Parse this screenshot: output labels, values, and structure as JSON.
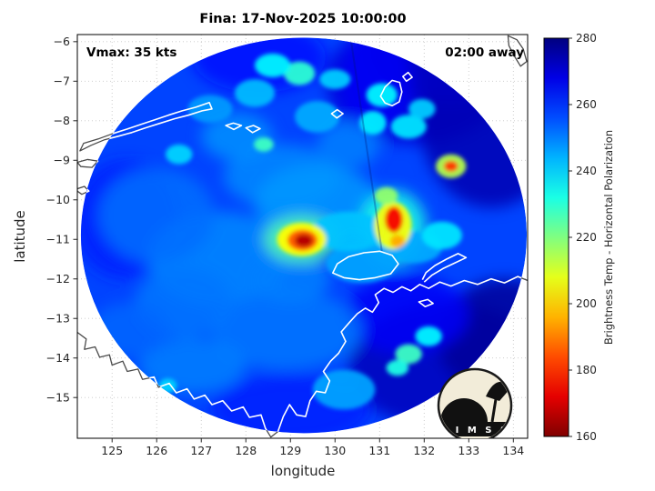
{
  "title": "Fina: 17-Nov-2025 10:00:00",
  "annotations": {
    "vmax": "Vmax: 35 kts",
    "eta": "02:00 away"
  },
  "axes": {
    "xlabel": "longitude",
    "ylabel": "latitude",
    "xticks": [
      125,
      126,
      127,
      128,
      129,
      130,
      131,
      132,
      133,
      134
    ],
    "yticks": [
      -6,
      -7,
      -8,
      -9,
      -10,
      -11,
      -12,
      -13,
      -14,
      -15
    ],
    "xlim": [
      124.22,
      134.32
    ],
    "ylim": [
      -16.03,
      -5.82
    ],
    "grid": "dotted"
  },
  "colorbar": {
    "label": "Brightness Temp - Horizontal Polarization",
    "ticks": [
      280,
      260,
      240,
      220,
      200,
      180,
      160
    ],
    "min": 160,
    "max": 280,
    "colormap": "jet (reversed: 280 K dark blue at top, 160 K dark red at bottom)"
  },
  "logo": {
    "text": "C I M S S"
  },
  "chart_data": {
    "type": "heatmap",
    "title": "Fina: 17-Nov-2025 10:00:00",
    "xlabel": "longitude",
    "ylabel": "latitude",
    "value_label": "Brightness Temp - Horizontal Polarization (K)",
    "value_range": [
      160,
      280
    ],
    "xlim": [
      124.22,
      134.32
    ],
    "ylim": [
      -16.03,
      -5.82
    ],
    "legend_position": "right-colorbar",
    "swath": {
      "center_lon": 129.3,
      "center_lat": -10.9,
      "radius_deg": 5.0,
      "background_bt": 257
    },
    "seam": {
      "from": [
        130.35,
        -5.9
      ],
      "to": [
        131.05,
        -11.3
      ]
    },
    "features": [
      {
        "lon": 131.8,
        "lat": -7.0,
        "bt": 270,
        "rx": 2.0,
        "ry": 1.6
      },
      {
        "lon": 133.5,
        "lat": -8.0,
        "bt": 274,
        "rx": 1.6,
        "ry": 2.2
      },
      {
        "lon": 132.6,
        "lat": -6.3,
        "bt": 272,
        "rx": 1.8,
        "ry": 1.2
      },
      {
        "lon": 130.9,
        "lat": -7.0,
        "bt": 266,
        "rx": 0.8,
        "ry": 1.4
      },
      {
        "lon": 132.5,
        "lat": -14.2,
        "bt": 273,
        "rx": 2.2,
        "ry": 1.6
      },
      {
        "lon": 133.8,
        "lat": -13.5,
        "bt": 277,
        "rx": 1.5,
        "ry": 1.5
      },
      {
        "lon": 131.6,
        "lat": -12.9,
        "bt": 266,
        "rx": 1.4,
        "ry": 1.0
      },
      {
        "lon": 128.3,
        "lat": -6.4,
        "bt": 264,
        "rx": 1.5,
        "ry": 0.9
      },
      {
        "lon": 125.3,
        "lat": -10.5,
        "bt": 261,
        "rx": 1.2,
        "ry": 1.5
      },
      {
        "lon": 129.0,
        "lat": -15.3,
        "bt": 261,
        "rx": 1.8,
        "ry": 0.9
      },
      {
        "lon": 127.4,
        "lat": -11.5,
        "bt": 249,
        "rx": 1.6,
        "ry": 1.2
      },
      {
        "lon": 126.0,
        "lat": -10.4,
        "bt": 252,
        "rx": 1.3,
        "ry": 1.2
      },
      {
        "lon": 128.9,
        "lat": -13.3,
        "bt": 251,
        "rx": 1.7,
        "ry": 1.0
      },
      {
        "lon": 128.8,
        "lat": -9.4,
        "bt": 249,
        "rx": 1.3,
        "ry": 0.8
      },
      {
        "lon": 129.6,
        "lat": -10.1,
        "bt": 247,
        "rx": 1.4,
        "ry": 1.0
      },
      {
        "lon": 126.6,
        "lat": -12.6,
        "bt": 251,
        "rx": 1.1,
        "ry": 0.9
      },
      {
        "lon": 129.0,
        "lat": -12.0,
        "bt": 250,
        "rx": 0.9,
        "ry": 0.6
      },
      {
        "lon": 126.8,
        "lat": -14.2,
        "bt": 250,
        "rx": 1.2,
        "ry": 0.7
      },
      {
        "lon": 125.4,
        "lat": -13.3,
        "bt": 253,
        "rx": 0.9,
        "ry": 0.7
      },
      {
        "lon": 127.8,
        "lat": -8.4,
        "bt": 248,
        "rx": 0.8,
        "ry": 0.6
      },
      {
        "lon": 130.3,
        "lat": -8.6,
        "bt": 250,
        "rx": 0.7,
        "ry": 0.6
      },
      {
        "lon": 130.2,
        "lat": -14.8,
        "bt": 246,
        "rx": 0.7,
        "ry": 0.5
      },
      {
        "lon": 130.6,
        "lat": -11.6,
        "bt": 246,
        "rx": 0.8,
        "ry": 0.5
      },
      {
        "lon": 131.8,
        "lat": -11.2,
        "bt": 245,
        "rx": 0.6,
        "ry": 0.4
      },
      {
        "lon": 130.3,
        "lat": -10.8,
        "bt": 242,
        "rx": 0.8,
        "ry": 0.5
      },
      {
        "lon": 128.2,
        "lat": -7.3,
        "bt": 243,
        "rx": 0.45,
        "ry": 0.35
      },
      {
        "lon": 129.6,
        "lat": -7.9,
        "bt": 245,
        "rx": 0.5,
        "ry": 0.4
      },
      {
        "lon": 127.2,
        "lat": -7.7,
        "bt": 247,
        "rx": 0.5,
        "ry": 0.35
      },
      {
        "lon": 129.2,
        "lat": -6.8,
        "bt": 230,
        "rx": 0.35,
        "ry": 0.3
      },
      {
        "lon": 128.6,
        "lat": -6.6,
        "bt": 236,
        "rx": 0.4,
        "ry": 0.3
      },
      {
        "lon": 131.05,
        "lat": -7.35,
        "bt": 236,
        "rx": 0.35,
        "ry": 0.3
      },
      {
        "lon": 130.0,
        "lat": -6.95,
        "bt": 241,
        "rx": 0.35,
        "ry": 0.25
      },
      {
        "lon": 131.65,
        "lat": -8.15,
        "bt": 238,
        "rx": 0.4,
        "ry": 0.3
      },
      {
        "lon": 131.95,
        "lat": -7.7,
        "bt": 241,
        "rx": 0.3,
        "ry": 0.25
      },
      {
        "lon": 130.85,
        "lat": -8.05,
        "bt": 237,
        "rx": 0.3,
        "ry": 0.3
      },
      {
        "lon": 126.5,
        "lat": -8.85,
        "bt": 240,
        "rx": 0.3,
        "ry": 0.25
      },
      {
        "lon": 132.4,
        "lat": -10.9,
        "bt": 238,
        "rx": 0.45,
        "ry": 0.35
      },
      {
        "lon": 131.65,
        "lat": -13.9,
        "bt": 228,
        "rx": 0.3,
        "ry": 0.25
      },
      {
        "lon": 131.4,
        "lat": -14.25,
        "bt": 232,
        "rx": 0.25,
        "ry": 0.2
      },
      {
        "lon": 132.1,
        "lat": -13.45,
        "bt": 236,
        "rx": 0.3,
        "ry": 0.25
      },
      {
        "lon": 125.4,
        "lat": -14.5,
        "bt": 237,
        "rx": 0.2,
        "ry": 0.18
      },
      {
        "lon": 126.25,
        "lat": -14.7,
        "bt": 240,
        "rx": 0.2,
        "ry": 0.18
      },
      {
        "lon": 128.4,
        "lat": -8.6,
        "bt": 228,
        "rx": 0.22,
        "ry": 0.18
      },
      {
        "lon": 129.25,
        "lat": -11.0,
        "bt": 225,
        "rx": 0.85,
        "ry": 0.6
      },
      {
        "lon": 129.25,
        "lat": -11.0,
        "bt": 205,
        "rx": 0.55,
        "ry": 0.42
      },
      {
        "lon": 129.27,
        "lat": -11.02,
        "bt": 185,
        "rx": 0.34,
        "ry": 0.27
      },
      {
        "lon": 129.3,
        "lat": -11.03,
        "bt": 166,
        "rx": 0.2,
        "ry": 0.16
      },
      {
        "lon": 131.3,
        "lat": -10.7,
        "bt": 232,
        "rx": 0.75,
        "ry": 0.95
      },
      {
        "lon": 131.3,
        "lat": -10.65,
        "bt": 206,
        "rx": 0.42,
        "ry": 0.6
      },
      {
        "lon": 131.32,
        "lat": -10.5,
        "bt": 174,
        "rx": 0.2,
        "ry": 0.33
      },
      {
        "lon": 131.4,
        "lat": -11.05,
        "bt": 195,
        "rx": 0.16,
        "ry": 0.16
      },
      {
        "lon": 131.15,
        "lat": -9.9,
        "bt": 218,
        "rx": 0.26,
        "ry": 0.22
      },
      {
        "lon": 132.6,
        "lat": -9.15,
        "bt": 214,
        "rx": 0.34,
        "ry": 0.3
      },
      {
        "lon": 132.6,
        "lat": -9.15,
        "bt": 181,
        "rx": 0.16,
        "ry": 0.14
      }
    ],
    "coastlines": {
      "color_inside_swath": "#ffffff",
      "color_outside_swath": "#4a4a4a",
      "paths": [
        {
          "name": "timor",
          "closed": true,
          "pts": [
            [
              124.28,
              -8.76
            ],
            [
              124.53,
              -8.62
            ],
            [
              124.83,
              -8.48
            ],
            [
              125.14,
              -8.39
            ],
            [
              125.44,
              -8.3
            ],
            [
              125.75,
              -8.18
            ],
            [
              126.06,
              -8.07
            ],
            [
              126.4,
              -7.95
            ],
            [
              126.71,
              -7.86
            ],
            [
              127.02,
              -7.75
            ],
            [
              127.24,
              -7.7
            ],
            [
              127.18,
              -7.54
            ],
            [
              126.87,
              -7.66
            ],
            [
              126.57,
              -7.75
            ],
            [
              126.26,
              -7.86
            ],
            [
              125.95,
              -7.98
            ],
            [
              125.65,
              -8.09
            ],
            [
              125.34,
              -8.21
            ],
            [
              125.03,
              -8.32
            ],
            [
              124.69,
              -8.46
            ],
            [
              124.36,
              -8.57
            ]
          ]
        },
        {
          "name": "rote",
          "closed": true,
          "pts": [
            [
              124.22,
              -9.05
            ],
            [
              124.45,
              -8.98
            ],
            [
              124.68,
              -9.02
            ],
            [
              124.55,
              -9.18
            ],
            [
              124.3,
              -9.16
            ]
          ]
        },
        {
          "name": "savu",
          "closed": true,
          "pts": [
            [
              124.22,
              -9.72
            ],
            [
              124.38,
              -9.66
            ],
            [
              124.48,
              -9.78
            ],
            [
              124.32,
              -9.86
            ],
            [
              124.22,
              -9.78
            ]
          ]
        },
        {
          "name": "leti",
          "closed": true,
          "pts": [
            [
              127.55,
              -8.12
            ],
            [
              127.72,
              -8.06
            ],
            [
              127.9,
              -8.12
            ],
            [
              127.73,
              -8.22
            ]
          ]
        },
        {
          "name": "moa",
          "closed": true,
          "pts": [
            [
              128.0,
              -8.18
            ],
            [
              128.17,
              -8.12
            ],
            [
              128.32,
              -8.2
            ],
            [
              128.15,
              -8.3
            ]
          ]
        },
        {
          "name": "babar",
          "closed": true,
          "pts": [
            [
              129.92,
              -7.82
            ],
            [
              130.05,
              -7.72
            ],
            [
              130.18,
              -7.82
            ],
            [
              130.04,
              -7.93
            ]
          ]
        },
        {
          "name": "tanimbar",
          "closed": true,
          "pts": [
            [
              131.02,
              -7.38
            ],
            [
              131.12,
              -7.15
            ],
            [
              131.28,
              -6.98
            ],
            [
              131.45,
              -7.03
            ],
            [
              131.5,
              -7.27
            ],
            [
              131.44,
              -7.52
            ],
            [
              131.28,
              -7.62
            ],
            [
              131.12,
              -7.55
            ]
          ]
        },
        {
          "name": "tanimbar-north",
          "closed": true,
          "pts": [
            [
              131.52,
              -6.88
            ],
            [
              131.64,
              -6.78
            ],
            [
              131.73,
              -6.9
            ],
            [
              131.6,
              -7.0
            ]
          ]
        },
        {
          "name": "aru",
          "closed": true,
          "pts": [
            [
              133.88,
              -5.85
            ],
            [
              134.08,
              -5.95
            ],
            [
              134.22,
              -6.18
            ],
            [
              134.3,
              -6.5
            ],
            [
              134.16,
              -6.62
            ],
            [
              134.02,
              -6.36
            ],
            [
              133.9,
              -6.1
            ]
          ]
        },
        {
          "name": "australia-north-coast",
          "closed": false,
          "pts": [
            [
              124.22,
              -13.35
            ],
            [
              124.42,
              -13.52
            ],
            [
              124.38,
              -13.78
            ],
            [
              124.62,
              -13.72
            ],
            [
              124.72,
              -13.98
            ],
            [
              124.94,
              -13.92
            ],
            [
              125.0,
              -14.18
            ],
            [
              125.24,
              -14.08
            ],
            [
              125.34,
              -14.34
            ],
            [
              125.58,
              -14.28
            ],
            [
              125.68,
              -14.54
            ],
            [
              125.94,
              -14.48
            ],
            [
              126.04,
              -14.74
            ],
            [
              126.28,
              -14.64
            ],
            [
              126.44,
              -14.88
            ],
            [
              126.68,
              -14.78
            ],
            [
              126.84,
              -15.04
            ],
            [
              127.08,
              -14.94
            ],
            [
              127.24,
              -15.18
            ],
            [
              127.48,
              -15.08
            ],
            [
              127.68,
              -15.34
            ],
            [
              127.94,
              -15.24
            ],
            [
              128.08,
              -15.5
            ],
            [
              128.34,
              -15.44
            ],
            [
              128.44,
              -15.78
            ],
            [
              128.56,
              -16.0
            ],
            [
              128.72,
              -15.86
            ],
            [
              128.84,
              -15.48
            ],
            [
              128.98,
              -15.18
            ],
            [
              129.14,
              -15.44
            ],
            [
              129.34,
              -15.48
            ],
            [
              129.44,
              -15.08
            ],
            [
              129.58,
              -14.84
            ],
            [
              129.78,
              -14.88
            ],
            [
              129.88,
              -14.58
            ],
            [
              129.74,
              -14.34
            ],
            [
              129.9,
              -14.08
            ],
            [
              130.08,
              -13.88
            ],
            [
              130.24,
              -13.58
            ],
            [
              130.14,
              -13.34
            ],
            [
              130.34,
              -13.08
            ],
            [
              130.5,
              -12.88
            ],
            [
              130.68,
              -12.74
            ],
            [
              130.84,
              -12.84
            ],
            [
              130.98,
              -12.6
            ],
            [
              130.9,
              -12.4
            ],
            [
              131.1,
              -12.24
            ],
            [
              131.3,
              -12.34
            ],
            [
              131.5,
              -12.2
            ],
            [
              131.7,
              -12.3
            ],
            [
              131.9,
              -12.14
            ],
            [
              132.1,
              -12.24
            ],
            [
              132.35,
              -12.08
            ],
            [
              132.6,
              -12.18
            ],
            [
              132.9,
              -12.04
            ],
            [
              133.2,
              -12.14
            ],
            [
              133.5,
              -12.0
            ],
            [
              133.8,
              -12.1
            ],
            [
              134.1,
              -11.94
            ],
            [
              134.32,
              -12.04
            ]
          ]
        },
        {
          "name": "tiwi-islands",
          "closed": true,
          "pts": [
            [
              129.95,
              -11.85
            ],
            [
              130.2,
              -11.97
            ],
            [
              130.55,
              -12.02
            ],
            [
              130.9,
              -11.97
            ],
            [
              131.25,
              -11.87
            ],
            [
              131.42,
              -11.62
            ],
            [
              131.28,
              -11.4
            ],
            [
              131.0,
              -11.3
            ],
            [
              130.65,
              -11.34
            ],
            [
              130.3,
              -11.44
            ],
            [
              130.05,
              -11.62
            ]
          ]
        },
        {
          "name": "cobourg-peninsula",
          "closed": false,
          "pts": [
            [
              132.0,
              -12.08
            ],
            [
              132.18,
              -11.9
            ],
            [
              132.42,
              -11.74
            ],
            [
              132.68,
              -11.6
            ],
            [
              132.94,
              -11.46
            ],
            [
              132.76,
              -11.36
            ],
            [
              132.5,
              -11.5
            ],
            [
              132.24,
              -11.66
            ],
            [
              132.04,
              -11.84
            ],
            [
              131.96,
              -12.02
            ]
          ]
        },
        {
          "name": "inland-lake",
          "closed": true,
          "pts": [
            [
              131.88,
              -12.58
            ],
            [
              132.08,
              -12.52
            ],
            [
              132.2,
              -12.62
            ],
            [
              132.02,
              -12.7
            ]
          ]
        }
      ]
    }
  }
}
